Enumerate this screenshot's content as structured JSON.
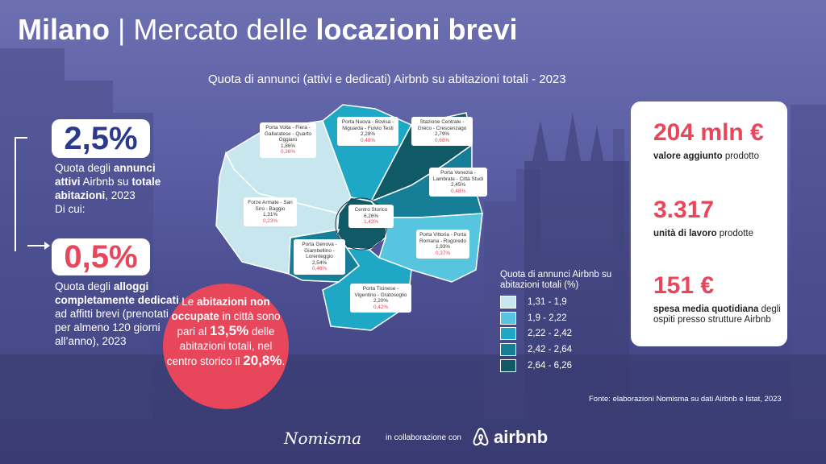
{
  "title": {
    "city": "Milano",
    "separator": " | ",
    "part1": "Mercato delle ",
    "part2": "locazioni brevi"
  },
  "subtitle": "Quota di annunci (attivi e dedicati) Airbnb su abitazioni totali - 2023",
  "left": {
    "stat1": {
      "value": "2,5%",
      "desc_a": "Quota degli ",
      "desc_b": "annunci attivi",
      "desc_c": " Airbnb su ",
      "desc_d": "totale abitazioni",
      "desc_e": ", 2023",
      "desc_f": "Di cui:"
    },
    "stat2": {
      "value": "0,5%",
      "desc_a": "Quota degli ",
      "desc_b": "alloggi completamente dedicati",
      "desc_c": " ad affitti brevi (prenotati per almeno 120 giorni all’anno), 2023"
    }
  },
  "circle": {
    "l1": "Le ",
    "l1b": "abitazioni non occupate",
    "l2": " in città sono pari al ",
    "v1": "13,5%",
    "l3": " delle abitazioni totali, nel centro storico il ",
    "v2": "20,8%",
    "l4": "."
  },
  "zones": [
    {
      "name": "Porta Volta - Fiera - Gallaratese - Quarto Oggiaro",
      "total": "1,86%",
      "dedicated": "0,36%"
    },
    {
      "name": "Porta Nuova - Bovisa - Niguarda - Fulvio Testi",
      "total": "2,28%",
      "dedicated": "0,48%"
    },
    {
      "name": "Stazione Centrale - Greco - Crescenzago",
      "total": "2,79%",
      "dedicated": "0,68%"
    },
    {
      "name": "Porta Venezia - Lambrate - Città Studi",
      "total": "2,45%",
      "dedicated": "0,48%"
    },
    {
      "name": "Forze Armate - San Siro - Baggio",
      "total": "1,31%",
      "dedicated": "0,23%"
    },
    {
      "name": "Centro Storico",
      "total": "6,26%",
      "dedicated": "1,43%"
    },
    {
      "name": "Porta Vittoria - Porta Romana - Rogoredo",
      "total": "1,93%",
      "dedicated": "0,37%"
    },
    {
      "name": "Porta Genova - Giambellino - Lorenteggio",
      "total": "2,54%",
      "dedicated": "0,46%"
    },
    {
      "name": "Porta Ticinese - Vigentino - Gratosoglio",
      "total": "2,20%",
      "dedicated": "0,42%"
    }
  ],
  "legend": {
    "title": "Quota di annunci Airbnb su abitazioni totali (%)",
    "items": [
      {
        "label": "1,31 - 1,9",
        "color": "#c8e6ee"
      },
      {
        "label": "1,9 - 2,22",
        "color": "#57c5df"
      },
      {
        "label": "2,22 - 2,42",
        "color": "#1fa8c6"
      },
      {
        "label": "2,42 - 2,64",
        "color": "#167f97"
      },
      {
        "label": "2,64 - 6,26",
        "color": "#0f5a66"
      }
    ]
  },
  "stats": [
    {
      "value": "204 mln €",
      "desc_b": "valore aggiunto",
      "desc_rest": " prodotto"
    },
    {
      "value": "3.317",
      "desc_b": "unità di lavoro",
      "desc_rest": " prodotte"
    },
    {
      "value": "151 €",
      "desc_b": "spesa media quotidiana",
      "desc_rest": " degli ospiti presso strutture Airbnb"
    }
  ],
  "source": "Fonte: elaborazioni Nomisma su dati Airbnb e Istat, 2023",
  "footer": {
    "nomisma": "Nomisma",
    "collab": "in collaborazione con",
    "airbnb": "airbnb"
  },
  "colors": {
    "accent_red": "#e8465b",
    "accent_blue": "#2b3a8c",
    "background": "#5a5ea3"
  }
}
